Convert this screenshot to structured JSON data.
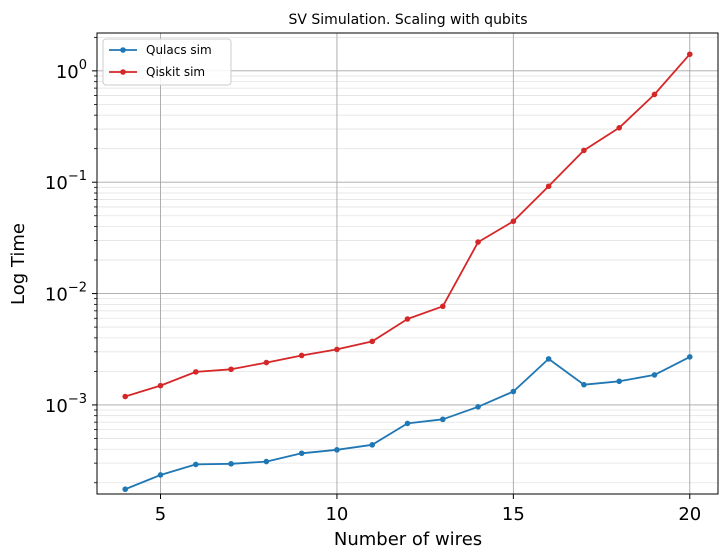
{
  "chart_data": {
    "type": "line",
    "title": "SV Simulation. Scaling with qubits",
    "xlabel": "Number of wires",
    "ylabel": "Log Time",
    "xscale": "linear",
    "yscale": "log",
    "xlim": [
      3.2,
      20.8
    ],
    "ylim_log10": [
      -3.8,
      0.34
    ],
    "xticks": [
      5,
      10,
      15,
      20
    ],
    "xtick_labels": [
      "5",
      "10",
      "15",
      "20"
    ],
    "yticks": [
      0.001,
      0.01,
      0.1,
      1
    ],
    "ytick_base": "10",
    "ytick_exponents": [
      "−3",
      "−2",
      "−1",
      "0"
    ],
    "grid": true,
    "legend_position": "top-left",
    "x": [
      4,
      5,
      6,
      7,
      8,
      9,
      10,
      11,
      12,
      13,
      14,
      15,
      16,
      17,
      18,
      19,
      20
    ],
    "series": [
      {
        "name": "Qulacs sim",
        "color": "#1f77b4",
        "values": [
          0.000175,
          0.000235,
          0.000292,
          0.000296,
          0.00031,
          0.000368,
          0.000395,
          0.000438,
          0.000682,
          0.000742,
          0.000962,
          0.00132,
          0.00259,
          0.00152,
          0.00163,
          0.00186,
          0.0027
        ]
      },
      {
        "name": "Qiskit sim",
        "color": "#d62728",
        "values": [
          0.00119,
          0.00149,
          0.00198,
          0.00209,
          0.0024,
          0.00278,
          0.00315,
          0.00372,
          0.00591,
          0.00768,
          0.029,
          0.0446,
          0.092,
          0.193,
          0.308,
          0.614,
          1.41
        ]
      }
    ]
  }
}
